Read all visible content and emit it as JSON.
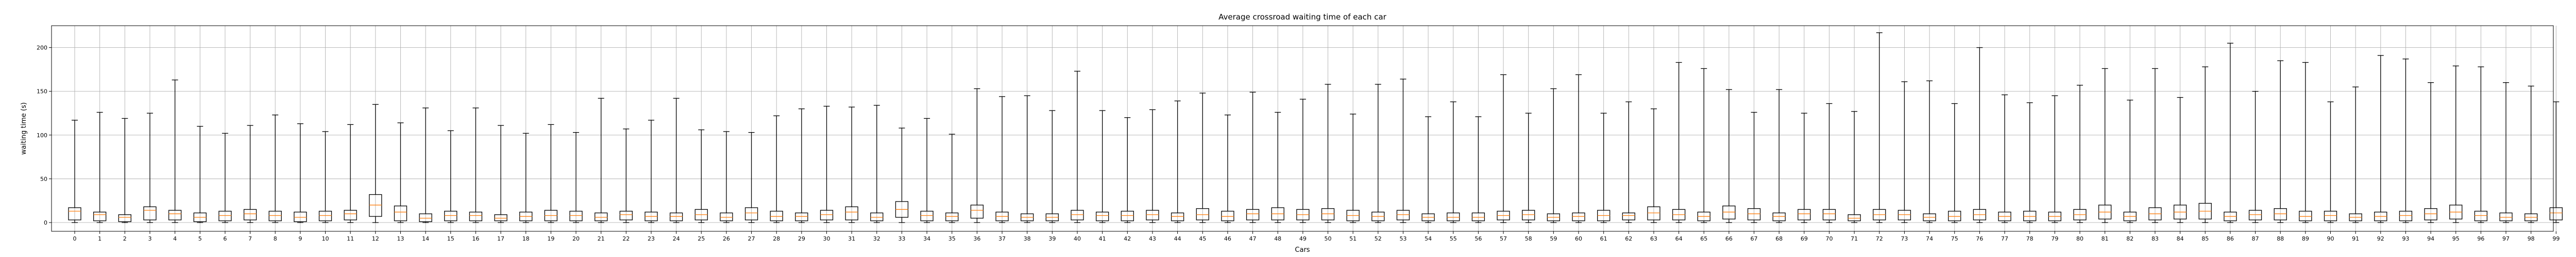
{
  "chart_data": {
    "type": "box",
    "title": "Average crossroad waiting time of each car",
    "xlabel": "Cars",
    "ylabel": "waiting time (s)",
    "ylim": [
      -10,
      225
    ],
    "yticks": [
      0,
      50,
      100,
      150,
      200
    ],
    "grid": true,
    "categories": [
      "0",
      "1",
      "2",
      "3",
      "4",
      "5",
      "6",
      "7",
      "8",
      "9",
      "10",
      "11",
      "12",
      "13",
      "14",
      "15",
      "16",
      "17",
      "18",
      "19",
      "20",
      "21",
      "22",
      "23",
      "24",
      "25",
      "26",
      "27",
      "28",
      "29",
      "30",
      "31",
      "32",
      "33",
      "34",
      "35",
      "36",
      "37",
      "38",
      "39",
      "40",
      "41",
      "42",
      "43",
      "44",
      "45",
      "46",
      "47",
      "48",
      "49",
      "50",
      "51",
      "52",
      "53",
      "54",
      "55",
      "56",
      "57",
      "58",
      "59",
      "60",
      "61",
      "62",
      "63",
      "64",
      "65",
      "66",
      "67",
      "68",
      "69",
      "70",
      "71",
      "72",
      "73",
      "74",
      "75",
      "76",
      "77",
      "78",
      "79",
      "80",
      "81",
      "82",
      "83",
      "84",
      "85",
      "86",
      "87",
      "88",
      "89",
      "90",
      "91",
      "92",
      "93",
      "94",
      "95",
      "96",
      "97",
      "98",
      "99"
    ],
    "boxes": [
      {
        "min": 0,
        "q1": 3,
        "median": 13,
        "q3": 17,
        "max": 117
      },
      {
        "min": 0,
        "q1": 2,
        "median": 9,
        "q3": 12,
        "max": 126
      },
      {
        "min": 0,
        "q1": 1,
        "median": 6,
        "q3": 9,
        "max": 119
      },
      {
        "min": 0,
        "q1": 3,
        "median": 14,
        "q3": 18,
        "max": 125
      },
      {
        "min": 0,
        "q1": 3,
        "median": 10,
        "q3": 14,
        "max": 163
      },
      {
        "min": 0,
        "q1": 1,
        "median": 6,
        "q3": 11,
        "max": 110
      },
      {
        "min": 0,
        "q1": 2,
        "median": 8,
        "q3": 13,
        "max": 102
      },
      {
        "min": 0,
        "q1": 3,
        "median": 10,
        "q3": 15,
        "max": 111
      },
      {
        "min": 0,
        "q1": 2,
        "median": 8,
        "q3": 13,
        "max": 123
      },
      {
        "min": 0,
        "q1": 1,
        "median": 6,
        "q3": 12,
        "max": 113
      },
      {
        "min": 0,
        "q1": 2,
        "median": 8,
        "q3": 13,
        "max": 104
      },
      {
        "min": 0,
        "q1": 3,
        "median": 10,
        "q3": 14,
        "max": 112
      },
      {
        "min": 0,
        "q1": 7,
        "median": 20,
        "q3": 32,
        "max": 135
      },
      {
        "min": 0,
        "q1": 2,
        "median": 12,
        "q3": 19,
        "max": 114
      },
      {
        "min": 0,
        "q1": 1,
        "median": 5,
        "q3": 10,
        "max": 131
      },
      {
        "min": 0,
        "q1": 2,
        "median": 8,
        "q3": 13,
        "max": 105
      },
      {
        "min": 0,
        "q1": 2,
        "median": 8,
        "q3": 12,
        "max": 131
      },
      {
        "min": 0,
        "q1": 2,
        "median": 5,
        "q3": 9,
        "max": 111
      },
      {
        "min": 0,
        "q1": 2,
        "median": 7,
        "q3": 12,
        "max": 102
      },
      {
        "min": 0,
        "q1": 2,
        "median": 8,
        "q3": 14,
        "max": 112
      },
      {
        "min": 0,
        "q1": 2,
        "median": 8,
        "q3": 13,
        "max": 103
      },
      {
        "min": 0,
        "q1": 2,
        "median": 6,
        "q3": 11,
        "max": 142
      },
      {
        "min": 0,
        "q1": 3,
        "median": 9,
        "q3": 13,
        "max": 107
      },
      {
        "min": 0,
        "q1": 2,
        "median": 7,
        "q3": 12,
        "max": 117
      },
      {
        "min": 0,
        "q1": 2,
        "median": 7,
        "q3": 11,
        "max": 142
      },
      {
        "min": 0,
        "q1": 3,
        "median": 9,
        "q3": 15,
        "max": 106
      },
      {
        "min": 0,
        "q1": 2,
        "median": 6,
        "q3": 11,
        "max": 104
      },
      {
        "min": 0,
        "q1": 3,
        "median": 11,
        "q3": 17,
        "max": 103
      },
      {
        "min": 0,
        "q1": 2,
        "median": 7,
        "q3": 13,
        "max": 122
      },
      {
        "min": 0,
        "q1": 2,
        "median": 7,
        "q3": 11,
        "max": 130
      },
      {
        "min": 0,
        "q1": 3,
        "median": 9,
        "q3": 14,
        "max": 133
      },
      {
        "min": 0,
        "q1": 3,
        "median": 12,
        "q3": 18,
        "max": 132
      },
      {
        "min": 0,
        "q1": 2,
        "median": 6,
        "q3": 11,
        "max": 134
      },
      {
        "min": 0,
        "q1": 6,
        "median": 15,
        "q3": 24,
        "max": 108
      },
      {
        "min": 0,
        "q1": 2,
        "median": 8,
        "q3": 13,
        "max": 119
      },
      {
        "min": 0,
        "q1": 2,
        "median": 7,
        "q3": 11,
        "max": 101
      },
      {
        "min": 0,
        "q1": 5,
        "median": 14,
        "q3": 20,
        "max": 153
      },
      {
        "min": 0,
        "q1": 2,
        "median": 7,
        "q3": 12,
        "max": 144
      },
      {
        "min": 0,
        "q1": 2,
        "median": 6,
        "q3": 10,
        "max": 145
      },
      {
        "min": 0,
        "q1": 2,
        "median": 6,
        "q3": 10,
        "max": 128
      },
      {
        "min": 0,
        "q1": 3,
        "median": 9,
        "q3": 14,
        "max": 173
      },
      {
        "min": 0,
        "q1": 2,
        "median": 8,
        "q3": 12,
        "max": 128
      },
      {
        "min": 0,
        "q1": 2,
        "median": 8,
        "q3": 13,
        "max": 120
      },
      {
        "min": 0,
        "q1": 3,
        "median": 9,
        "q3": 14,
        "max": 129
      },
      {
        "min": 0,
        "q1": 2,
        "median": 7,
        "q3": 11,
        "max": 139
      },
      {
        "min": 0,
        "q1": 3,
        "median": 9,
        "q3": 16,
        "max": 148
      },
      {
        "min": 0,
        "q1": 2,
        "median": 7,
        "q3": 13,
        "max": 123
      },
      {
        "min": 0,
        "q1": 3,
        "median": 10,
        "q3": 15,
        "max": 149
      },
      {
        "min": 0,
        "q1": 3,
        "median": 10,
        "q3": 17,
        "max": 126
      },
      {
        "min": 0,
        "q1": 3,
        "median": 9,
        "q3": 15,
        "max": 141
      },
      {
        "min": 0,
        "q1": 3,
        "median": 10,
        "q3": 16,
        "max": 158
      },
      {
        "min": 0,
        "q1": 2,
        "median": 8,
        "q3": 14,
        "max": 124
      },
      {
        "min": 0,
        "q1": 2,
        "median": 7,
        "q3": 12,
        "max": 158
      },
      {
        "min": 0,
        "q1": 3,
        "median": 9,
        "q3": 14,
        "max": 164
      },
      {
        "min": 0,
        "q1": 2,
        "median": 6,
        "q3": 10,
        "max": 121
      },
      {
        "min": 0,
        "q1": 2,
        "median": 6,
        "q3": 11,
        "max": 138
      },
      {
        "min": 0,
        "q1": 2,
        "median": 6,
        "q3": 11,
        "max": 121
      },
      {
        "min": 0,
        "q1": 3,
        "median": 8,
        "q3": 13,
        "max": 169
      },
      {
        "min": 0,
        "q1": 3,
        "median": 9,
        "q3": 14,
        "max": 125
      },
      {
        "min": 0,
        "q1": 2,
        "median": 6,
        "q3": 10,
        "max": 153
      },
      {
        "min": 0,
        "q1": 2,
        "median": 7,
        "q3": 11,
        "max": 169
      },
      {
        "min": 0,
        "q1": 2,
        "median": 8,
        "q3": 14,
        "max": 125
      },
      {
        "min": 0,
        "q1": 3,
        "median": 8,
        "q3": 11,
        "max": 138
      },
      {
        "min": 0,
        "q1": 3,
        "median": 11,
        "q3": 18,
        "max": 130
      },
      {
        "min": 0,
        "q1": 3,
        "median": 9,
        "q3": 15,
        "max": 183
      },
      {
        "min": 0,
        "q1": 2,
        "median": 7,
        "q3": 12,
        "max": 176
      },
      {
        "min": 0,
        "q1": 4,
        "median": 12,
        "q3": 19,
        "max": 152
      },
      {
        "min": 0,
        "q1": 3,
        "median": 10,
        "q3": 16,
        "max": 126
      },
      {
        "min": 0,
        "q1": 2,
        "median": 7,
        "q3": 11,
        "max": 152
      },
      {
        "min": 0,
        "q1": 3,
        "median": 10,
        "q3": 15,
        "max": 125
      },
      {
        "min": 0,
        "q1": 3,
        "median": 10,
        "q3": 15,
        "max": 136
      },
      {
        "min": 0,
        "q1": 2,
        "median": 5,
        "q3": 9,
        "max": 127
      },
      {
        "min": 0,
        "q1": 3,
        "median": 9,
        "q3": 15,
        "max": 217
      },
      {
        "min": 0,
        "q1": 3,
        "median": 9,
        "q3": 14,
        "max": 161
      },
      {
        "min": 0,
        "q1": 2,
        "median": 6,
        "q3": 10,
        "max": 162
      },
      {
        "min": 0,
        "q1": 2,
        "median": 7,
        "q3": 13,
        "max": 136
      },
      {
        "min": 0,
        "q1": 3,
        "median": 9,
        "q3": 15,
        "max": 200
      },
      {
        "min": 0,
        "q1": 2,
        "median": 7,
        "q3": 12,
        "max": 146
      },
      {
        "min": 0,
        "q1": 2,
        "median": 7,
        "q3": 13,
        "max": 137
      },
      {
        "min": 0,
        "q1": 2,
        "median": 7,
        "q3": 12,
        "max": 145
      },
      {
        "min": 0,
        "q1": 3,
        "median": 9,
        "q3": 15,
        "max": 157
      },
      {
        "min": 0,
        "q1": 4,
        "median": 12,
        "q3": 20,
        "max": 176
      },
      {
        "min": 0,
        "q1": 2,
        "median": 7,
        "q3": 12,
        "max": 140
      },
      {
        "min": 0,
        "q1": 3,
        "median": 10,
        "q3": 17,
        "max": 176
      },
      {
        "min": 0,
        "q1": 4,
        "median": 12,
        "q3": 20,
        "max": 143
      },
      {
        "min": 0,
        "q1": 4,
        "median": 13,
        "q3": 22,
        "max": 178
      },
      {
        "min": 0,
        "q1": 2,
        "median": 7,
        "q3": 12,
        "max": 205
      },
      {
        "min": 0,
        "q1": 3,
        "median": 9,
        "q3": 14,
        "max": 150
      },
      {
        "min": 0,
        "q1": 3,
        "median": 10,
        "q3": 16,
        "max": 185
      },
      {
        "min": 0,
        "q1": 2,
        "median": 7,
        "q3": 13,
        "max": 183
      },
      {
        "min": 0,
        "q1": 2,
        "median": 8,
        "q3": 13,
        "max": 138
      },
      {
        "min": 0,
        "q1": 2,
        "median": 6,
        "q3": 10,
        "max": 155
      },
      {
        "min": 0,
        "q1": 2,
        "median": 7,
        "q3": 12,
        "max": 191
      },
      {
        "min": 0,
        "q1": 2,
        "median": 8,
        "q3": 13,
        "max": 187
      },
      {
        "min": 0,
        "q1": 3,
        "median": 10,
        "q3": 16,
        "max": 160
      },
      {
        "min": 0,
        "q1": 4,
        "median": 12,
        "q3": 20,
        "max": 179
      },
      {
        "min": 0,
        "q1": 2,
        "median": 8,
        "q3": 13,
        "max": 178
      },
      {
        "min": 0,
        "q1": 2,
        "median": 6,
        "q3": 11,
        "max": 160
      },
      {
        "min": 0,
        "q1": 2,
        "median": 6,
        "q3": 10,
        "max": 156
      },
      {
        "min": 0,
        "q1": 3,
        "median": 11,
        "q3": 17,
        "max": 138
      }
    ],
    "colors": {
      "box": "#000000",
      "median": "#ff7f0e",
      "grid": "#b0b0b0",
      "background": "#ffffff"
    }
  }
}
